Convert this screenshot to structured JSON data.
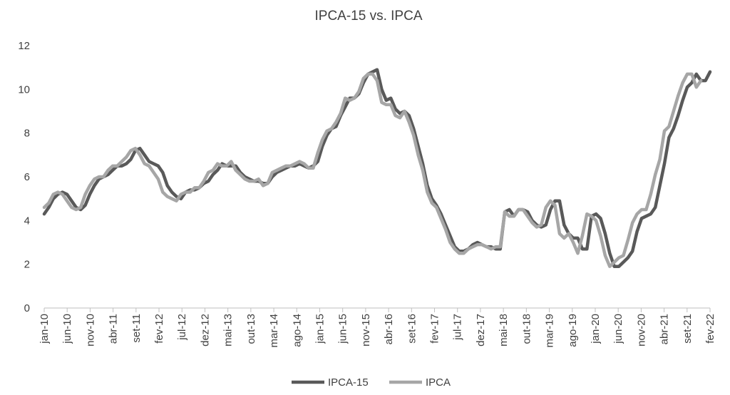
{
  "chart_data": {
    "type": "line",
    "title": "IPCA-15 vs. IPCA",
    "xlabel": "",
    "ylabel": "",
    "ylim": [
      0,
      12
    ],
    "yticks": [
      0,
      2,
      4,
      6,
      8,
      10,
      12
    ],
    "grid": false,
    "legend": "bottom",
    "x_tick_labels": [
      "jan-10",
      "jun-10",
      "nov-10",
      "abr-11",
      "set-11",
      "fev-12",
      "jul-12",
      "dez-12",
      "mai-13",
      "out-13",
      "mar-14",
      "ago-14",
      "jan-15",
      "jun-15",
      "nov-15",
      "abr-16",
      "set-16",
      "fev-17",
      "jul-17",
      "dez-17",
      "mai-18",
      "out-18",
      "mar-19",
      "ago-19",
      "jan-20",
      "jun-20",
      "nov-20",
      "abr-21",
      "set-21",
      "fev-22"
    ],
    "x_start": "jan-10",
    "x_end": "fev-22",
    "series": [
      {
        "name": "IPCA-15",
        "color": "#595959",
        "values": [
          4.3,
          4.6,
          5.0,
          5.2,
          5.3,
          5.2,
          4.9,
          4.6,
          4.5,
          4.7,
          5.2,
          5.6,
          5.9,
          6.0,
          6.1,
          6.3,
          6.5,
          6.5,
          6.6,
          6.8,
          7.2,
          7.3,
          7.0,
          6.7,
          6.6,
          6.5,
          6.2,
          5.6,
          5.3,
          5.1,
          5.0,
          5.3,
          5.4,
          5.4,
          5.5,
          5.7,
          5.8,
          6.1,
          6.3,
          6.6,
          6.5,
          6.5,
          6.5,
          6.2,
          6.0,
          5.9,
          5.8,
          5.8,
          5.7,
          5.7,
          6.0,
          6.2,
          6.3,
          6.4,
          6.5,
          6.5,
          6.6,
          6.5,
          6.4,
          6.5,
          6.7,
          7.4,
          7.9,
          8.2,
          8.3,
          8.8,
          9.2,
          9.6,
          9.6,
          9.8,
          10.3,
          10.7,
          10.8,
          10.9,
          10.0,
          9.5,
          9.6,
          9.1,
          8.9,
          9.0,
          8.8,
          8.2,
          7.4,
          6.6,
          5.6,
          5.0,
          4.7,
          4.3,
          3.8,
          3.3,
          2.8,
          2.6,
          2.6,
          2.7,
          2.9,
          3.0,
          2.9,
          2.8,
          2.8,
          2.7,
          2.7,
          4.4,
          4.5,
          4.2,
          4.5,
          4.5,
          4.4,
          4.0,
          3.8,
          3.7,
          3.8,
          4.5,
          4.9,
          4.9,
          3.8,
          3.4,
          3.2,
          3.2,
          2.7,
          2.7,
          4.2,
          4.3,
          4.1,
          3.4,
          2.5,
          1.9,
          1.9,
          2.1,
          2.3,
          2.6,
          3.5,
          4.1,
          4.2,
          4.3,
          4.6,
          5.6,
          6.6,
          7.8,
          8.2,
          8.8,
          9.5,
          10.1,
          10.3,
          10.7,
          10.4,
          10.4,
          10.8
        ]
      },
      {
        "name": "IPCA",
        "color": "#a6a6a6",
        "values": [
          4.6,
          4.8,
          5.2,
          5.3,
          5.2,
          4.9,
          4.6,
          4.5,
          4.6,
          5.2,
          5.6,
          5.9,
          6.0,
          6.0,
          6.3,
          6.5,
          6.5,
          6.7,
          6.9,
          7.2,
          7.3,
          7.0,
          6.6,
          6.5,
          6.2,
          5.9,
          5.3,
          5.1,
          5.0,
          4.9,
          5.2,
          5.3,
          5.3,
          5.5,
          5.5,
          5.8,
          6.2,
          6.3,
          6.6,
          6.5,
          6.5,
          6.7,
          6.3,
          6.1,
          5.9,
          5.8,
          5.8,
          5.9,
          5.6,
          5.7,
          6.2,
          6.3,
          6.4,
          6.5,
          6.5,
          6.6,
          6.7,
          6.6,
          6.4,
          6.4,
          7.1,
          7.7,
          8.1,
          8.2,
          8.5,
          8.9,
          9.6,
          9.5,
          9.6,
          9.9,
          10.5,
          10.7,
          10.7,
          10.4,
          9.4,
          9.3,
          9.3,
          8.8,
          8.7,
          9.0,
          8.5,
          7.9,
          7.0,
          6.3,
          5.3,
          4.8,
          4.6,
          4.1,
          3.6,
          3.0,
          2.7,
          2.5,
          2.5,
          2.7,
          2.8,
          2.9,
          2.9,
          2.8,
          2.7,
          2.8,
          2.8,
          4.4,
          4.2,
          4.2,
          4.5,
          4.5,
          4.2,
          3.9,
          3.7,
          3.8,
          4.6,
          4.9,
          4.7,
          3.4,
          3.2,
          3.4,
          3.0,
          2.5,
          3.3,
          4.3,
          4.2,
          4.0,
          3.3,
          2.4,
          1.9,
          2.1,
          2.3,
          2.4,
          3.1,
          3.9,
          4.3,
          4.5,
          4.5,
          5.2,
          6.1,
          6.8,
          8.1,
          8.3,
          9.0,
          9.7,
          10.3,
          10.7,
          10.7,
          10.1,
          10.4
        ]
      }
    ]
  }
}
